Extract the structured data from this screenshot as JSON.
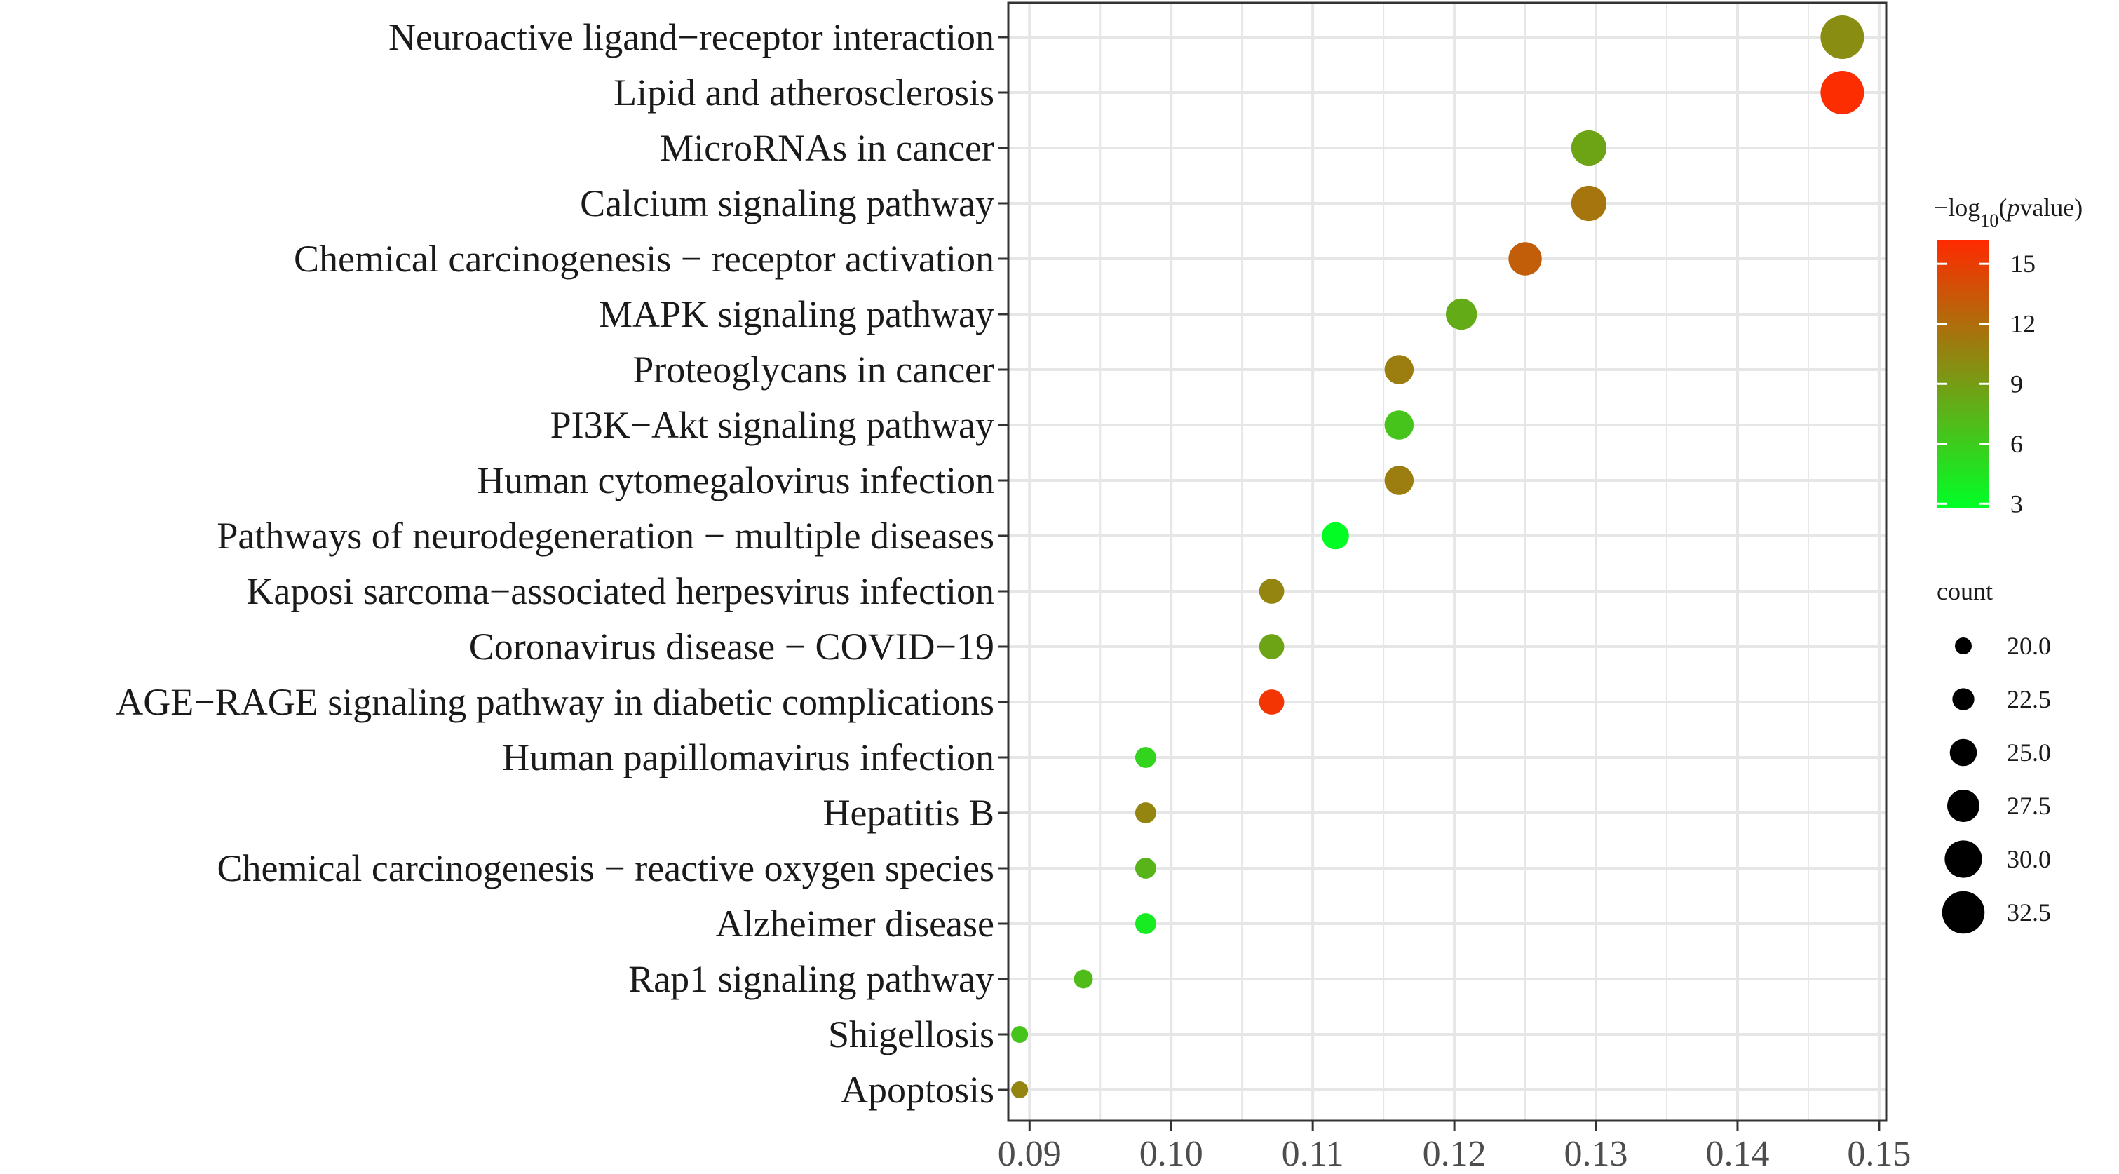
{
  "chart_data": {
    "type": "scatter",
    "title": "",
    "xlabel": "",
    "ylabel": "",
    "xlim": [
      0.0885,
      0.1505
    ],
    "x_ticks": [
      "0.09",
      "0.10",
      "0.11",
      "0.12",
      "0.13",
      "0.14",
      "0.15"
    ],
    "x_tick_values": [
      0.09,
      0.1,
      0.11,
      0.12,
      0.13,
      0.14,
      0.15
    ],
    "grid": true,
    "categories": [
      "Neuroactive ligand−receptor interaction",
      "Lipid and atherosclerosis",
      "MicroRNAs in cancer",
      "Calcium signaling pathway",
      "Chemical carcinogenesis − receptor activation",
      "MAPK signaling pathway",
      "Proteoglycans in cancer",
      "PI3K−Akt signaling pathway",
      "Human cytomegalovirus infection",
      "Pathways of neurodegeneration − multiple diseases",
      "Kaposi sarcoma−associated herpesvirus infection",
      "Coronavirus disease − COVID−19",
      "AGE−RAGE signaling pathway in diabetic complications",
      "Human papillomavirus infection",
      "Hepatitis B",
      "Chemical carcinogenesis − reactive oxygen species",
      "Alzheimer disease",
      "Rap1 signaling pathway",
      "Shigellosis",
      "Apoptosis"
    ],
    "points": [
      {
        "x": 0.1474,
        "count": 33,
        "neglog10p": 10.0
      },
      {
        "x": 0.1474,
        "count": 33,
        "neglog10p": 16.0
      },
      {
        "x": 0.1295,
        "count": 29,
        "neglog10p": 8.5
      },
      {
        "x": 0.1295,
        "count": 29,
        "neglog10p": 11.5
      },
      {
        "x": 0.125,
        "count": 28,
        "neglog10p": 13.0
      },
      {
        "x": 0.1205,
        "count": 27,
        "neglog10p": 8.0
      },
      {
        "x": 0.1161,
        "count": 26,
        "neglog10p": 11.0
      },
      {
        "x": 0.1161,
        "count": 26,
        "neglog10p": 6.5
      },
      {
        "x": 0.1161,
        "count": 26,
        "neglog10p": 11.0
      },
      {
        "x": 0.1116,
        "count": 25,
        "neglog10p": 3.0
      },
      {
        "x": 0.1071,
        "count": 24,
        "neglog10p": 10.5
      },
      {
        "x": 0.1071,
        "count": 24,
        "neglog10p": 8.5
      },
      {
        "x": 0.1071,
        "count": 24,
        "neglog10p": 15.5
      },
      {
        "x": 0.0982,
        "count": 22,
        "neglog10p": 5.5
      },
      {
        "x": 0.0982,
        "count": 22,
        "neglog10p": 10.5
      },
      {
        "x": 0.0982,
        "count": 22,
        "neglog10p": 7.5
      },
      {
        "x": 0.0982,
        "count": 22,
        "neglog10p": 4.0
      },
      {
        "x": 0.0938,
        "count": 21,
        "neglog10p": 7.0
      },
      {
        "x": 0.0893,
        "count": 20,
        "neglog10p": 6.5
      },
      {
        "x": 0.0893,
        "count": 20,
        "neglog10p": 10.5
      }
    ],
    "color_scale": {
      "title_prefix": "−log",
      "title_sub": "10",
      "title_open": "(",
      "title_italic": "p",
      "title_suffix": "value)",
      "min": 2.8,
      "max": 16.2,
      "low_color": "#00ff26",
      "high_color": "#ff2a00",
      "ticks": [
        3,
        6,
        9,
        12,
        15
      ]
    },
    "size_legend": {
      "title": "count",
      "entries": [
        {
          "value": 20.0,
          "label": "20.0"
        },
        {
          "value": 22.5,
          "label": "22.5"
        },
        {
          "value": 25.0,
          "label": "25.0"
        },
        {
          "value": 27.5,
          "label": "27.5"
        },
        {
          "value": 30.0,
          "label": "30.0"
        },
        {
          "value": 32.5,
          "label": "32.5"
        }
      ],
      "count_range": [
        20,
        33
      ]
    }
  }
}
